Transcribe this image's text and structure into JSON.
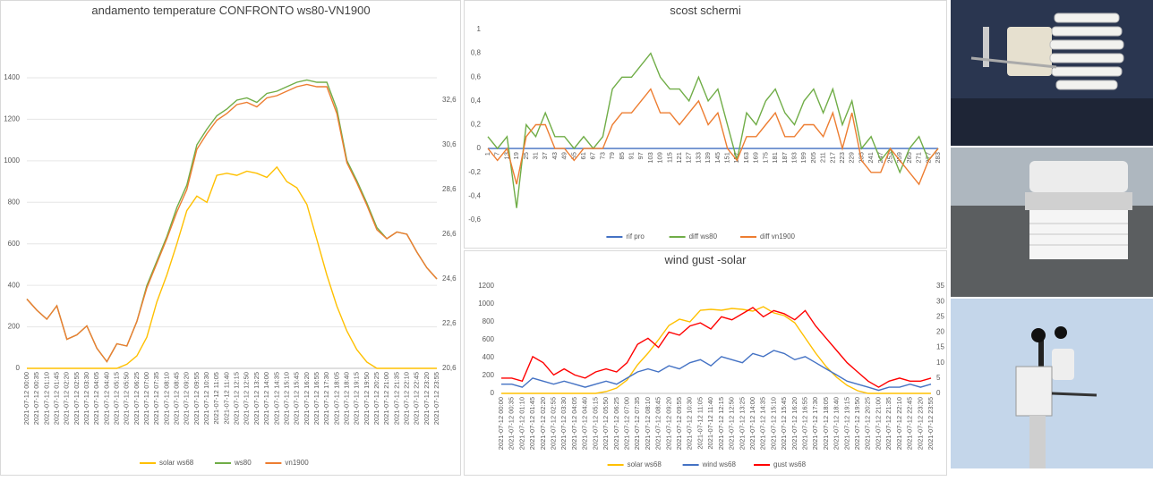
{
  "chart_data": [
    {
      "type": "line",
      "title": "andamento temperature CONFRONTO ws80-VN1900",
      "categories": [
        "2021-07-12 00:00",
        "2021-07-12 00:35",
        "2021-07-12 01:10",
        "2021-07-12 01:45",
        "2021-07-12 02:20",
        "2021-07-12 02:55",
        "2021-07-12 03:30",
        "2021-07-12 04:05",
        "2021-07-12 04:40",
        "2021-07-12 05:15",
        "2021-07-12 05:50",
        "2021-07-12 06:25",
        "2021-07-12 07:00",
        "2021-07-12 07:35",
        "2021-07-12 08:10",
        "2021-07-12 08:45",
        "2021-07-12 09:20",
        "2021-07-12 09:55",
        "2021-07-12 10:30",
        "2021-07-12 11:05",
        "2021-07-12 11:40",
        "2021-07-12 12:15",
        "2021-07-12 12:50",
        "2021-07-12 13:25",
        "2021-07-12 14:00",
        "2021-07-12 14:35",
        "2021-07-12 15:10",
        "2021-07-12 15:45",
        "2021-07-12 16:20",
        "2021-07-12 16:55",
        "2021-07-12 17:30",
        "2021-07-12 18:05",
        "2021-07-12 18:40",
        "2021-07-12 19:15",
        "2021-07-12 19:50",
        "2021-07-12 20:25",
        "2021-07-12 21:00",
        "2021-07-12 21:35",
        "2021-07-12 22:10",
        "2021-07-12 22:45",
        "2021-07-12 23:20",
        "2021-07-12 23:55"
      ],
      "series": [
        {
          "name": "solar ws68",
          "color": "#ffc000",
          "values": [
            0,
            0,
            0,
            0,
            0,
            0,
            0,
            0,
            0,
            0,
            20,
            60,
            150,
            320,
            450,
            600,
            760,
            830,
            800,
            930,
            940,
            930,
            950,
            940,
            920,
            970,
            900,
            870,
            790,
            620,
            450,
            300,
            180,
            90,
            30,
            0,
            0,
            0,
            0,
            0,
            0,
            0
          ]
        },
        {
          "name": "ws80",
          "color": "#70ad47",
          "axis": "y2",
          "values": [
            23.7,
            23.2,
            22.8,
            23.4,
            21.9,
            22.1,
            22.5,
            21.5,
            20.9,
            21.7,
            21.6,
            22.7,
            24.3,
            25.4,
            26.5,
            27.8,
            28.8,
            30.6,
            31.3,
            31.9,
            32.2,
            32.6,
            32.7,
            32.5,
            32.9,
            33.0,
            33.2,
            33.4,
            33.5,
            33.4,
            33.4,
            32.2,
            29.9,
            29.0,
            28.0,
            26.9,
            26.4,
            26.7,
            26.6,
            25.8,
            25.1,
            24.6
          ]
        },
        {
          "name": "vn1900",
          "color": "#ed7d31",
          "axis": "y2",
          "values": [
            23.7,
            23.2,
            22.8,
            23.4,
            21.9,
            22.1,
            22.5,
            21.5,
            20.9,
            21.7,
            21.6,
            22.7,
            24.2,
            25.3,
            26.4,
            27.6,
            28.6,
            30.4,
            31.1,
            31.7,
            32.0,
            32.4,
            32.5,
            32.3,
            32.7,
            32.8,
            33.0,
            33.2,
            33.3,
            33.2,
            33.2,
            32.0,
            29.8,
            28.9,
            27.9,
            26.8,
            26.4,
            26.7,
            26.6,
            25.8,
            25.1,
            24.6
          ]
        }
      ],
      "ylim": [
        0,
        1400
      ],
      "yticks": [
        0,
        200,
        400,
        600,
        800,
        1000,
        1200,
        1400
      ],
      "y2lim": [
        20.6,
        33.6
      ],
      "y2ticks": [
        {
          "value": 20.6,
          "label": "20,6"
        },
        {
          "value": 22.6,
          "label": "22,6"
        },
        {
          "value": 24.6,
          "label": "24,6"
        },
        {
          "value": 26.6,
          "label": "26,6"
        },
        {
          "value": 28.6,
          "label": "28,6"
        },
        {
          "value": 30.6,
          "label": "30,6"
        },
        {
          "value": 32.6,
          "label": "32,6"
        }
      ],
      "grid": true,
      "legend": "bottom"
    },
    {
      "type": "line",
      "title": "scost schermi",
      "categories": [
        1,
        7,
        13,
        19,
        25,
        31,
        37,
        43,
        49,
        55,
        61,
        67,
        73,
        79,
        85,
        91,
        97,
        103,
        109,
        115,
        121,
        127,
        133,
        139,
        145,
        151,
        157,
        163,
        169,
        175,
        181,
        187,
        193,
        199,
        205,
        211,
        217,
        223,
        229,
        235,
        241,
        247,
        253,
        259,
        265,
        271,
        277,
        283
      ],
      "series": [
        {
          "name": "rif pro",
          "color": "#4472c4",
          "values": [
            0,
            0,
            0,
            0,
            0,
            0,
            0,
            0,
            0,
            0,
            0,
            0,
            0,
            0,
            0,
            0,
            0,
            0,
            0,
            0,
            0,
            0,
            0,
            0,
            0,
            0,
            0,
            0,
            0,
            0,
            0,
            0,
            0,
            0,
            0,
            0,
            0,
            0,
            0,
            0,
            0,
            0,
            0,
            0,
            0,
            0,
            0,
            0
          ]
        },
        {
          "name": "diff ws80",
          "color": "#70ad47",
          "values": [
            0.1,
            0,
            0.1,
            -0.5,
            0.2,
            0.1,
            0.3,
            0.1,
            0.1,
            0,
            0.1,
            0,
            0.1,
            0.5,
            0.6,
            0.6,
            0.7,
            0.8,
            0.6,
            0.5,
            0.5,
            0.4,
            0.6,
            0.4,
            0.5,
            0.2,
            -0.1,
            0.3,
            0.2,
            0.4,
            0.5,
            0.3,
            0.2,
            0.4,
            0.5,
            0.3,
            0.5,
            0.2,
            0.4,
            0,
            0.1,
            -0.1,
            0,
            -0.2,
            0,
            0.1,
            -0.1,
            0
          ]
        },
        {
          "name": "diff vn1900",
          "color": "#ed7d31",
          "values": [
            0,
            -0.1,
            0,
            -0.3,
            0.1,
            0.2,
            0.2,
            0,
            0,
            -0.1,
            0,
            0,
            0,
            0.2,
            0.3,
            0.3,
            0.4,
            0.5,
            0.3,
            0.3,
            0.2,
            0.3,
            0.4,
            0.2,
            0.3,
            0,
            -0.1,
            0.1,
            0.1,
            0.2,
            0.3,
            0.1,
            0.1,
            0.2,
            0.2,
            0.1,
            0.3,
            0,
            0.3,
            -0.1,
            -0.2,
            -0.2,
            0,
            -0.1,
            -0.2,
            -0.3,
            -0.1,
            0
          ]
        }
      ],
      "ylim": [
        -0.6,
        1
      ],
      "yticks": [
        {
          "value": -0.6,
          "label": "-0,6"
        },
        {
          "value": -0.4,
          "label": "-0,4"
        },
        {
          "value": -0.2,
          "label": "-0,2"
        },
        0,
        {
          "value": 0.2,
          "label": "0,2"
        },
        {
          "value": 0.4,
          "label": "0,4"
        },
        {
          "value": 0.6,
          "label": "0,6"
        },
        {
          "value": 0.8,
          "label": "0,8"
        },
        1
      ],
      "grid": false,
      "legend": "bottom"
    },
    {
      "type": "line",
      "title": "wind gust -solar",
      "categories": [
        "2021-07-12 00:00",
        "2021-07-12 00:35",
        "2021-07-12 01:10",
        "2021-07-12 01:45",
        "2021-07-12 02:20",
        "2021-07-12 02:55",
        "2021-07-12 03:30",
        "2021-07-12 04:05",
        "2021-07-12 04:40",
        "2021-07-12 05:15",
        "2021-07-12 05:50",
        "2021-07-12 06:25",
        "2021-07-12 07:00",
        "2021-07-12 07:35",
        "2021-07-12 08:10",
        "2021-07-12 08:45",
        "2021-07-12 09:20",
        "2021-07-12 09:55",
        "2021-07-12 10:30",
        "2021-07-12 11:05",
        "2021-07-12 11:40",
        "2021-07-12 12:15",
        "2021-07-12 12:50",
        "2021-07-12 13:25",
        "2021-07-12 14:00",
        "2021-07-12 14:35",
        "2021-07-12 15:10",
        "2021-07-12 15:45",
        "2021-07-12 16:20",
        "2021-07-12 16:55",
        "2021-07-12 17:30",
        "2021-07-12 18:05",
        "2021-07-12 18:40",
        "2021-07-12 19:15",
        "2021-07-12 19:50",
        "2021-07-12 20:25",
        "2021-07-12 21:00",
        "2021-07-12 21:35",
        "2021-07-12 22:10",
        "2021-07-12 22:45",
        "2021-07-12 23:20",
        "2021-07-12 23:55"
      ],
      "series": [
        {
          "name": "solar ws68",
          "color": "#ffc000",
          "values": [
            0,
            0,
            0,
            0,
            0,
            0,
            0,
            0,
            0,
            0,
            20,
            60,
            150,
            320,
            450,
            600,
            760,
            830,
            800,
            930,
            940,
            930,
            950,
            940,
            920,
            970,
            900,
            870,
            790,
            620,
            450,
            300,
            180,
            90,
            30,
            0,
            0,
            0,
            0,
            0,
            0,
            0
          ]
        },
        {
          "name": "wind ws68",
          "color": "#4472c4",
          "axis": "y2",
          "values": [
            3,
            3,
            2,
            5,
            4,
            3,
            4,
            3,
            2,
            3,
            4,
            3,
            5,
            7,
            8,
            7,
            9,
            8,
            10,
            11,
            9,
            12,
            11,
            10,
            13,
            12,
            14,
            13,
            11,
            12,
            10,
            8,
            6,
            4,
            3,
            2,
            1,
            2,
            2,
            3,
            2,
            3
          ]
        },
        {
          "name": "gust ws68",
          "color": "#ff0000",
          "axis": "y2",
          "values": [
            5,
            5,
            4,
            12,
            10,
            6,
            8,
            6,
            5,
            7,
            8,
            7,
            10,
            16,
            18,
            15,
            20,
            19,
            22,
            23,
            21,
            25,
            24,
            26,
            28,
            25,
            27,
            26,
            24,
            27,
            22,
            18,
            14,
            10,
            7,
            4,
            2,
            4,
            5,
            4,
            4,
            5
          ]
        }
      ],
      "ylim": [
        0,
        1200
      ],
      "yticks": [
        0,
        200,
        400,
        600,
        800,
        1000,
        1200
      ],
      "y2lim": [
        0,
        35
      ],
      "y2ticks": [
        0,
        5,
        10,
        15,
        20,
        25,
        30,
        35
      ],
      "grid": false,
      "legend": "bottom"
    }
  ]
}
